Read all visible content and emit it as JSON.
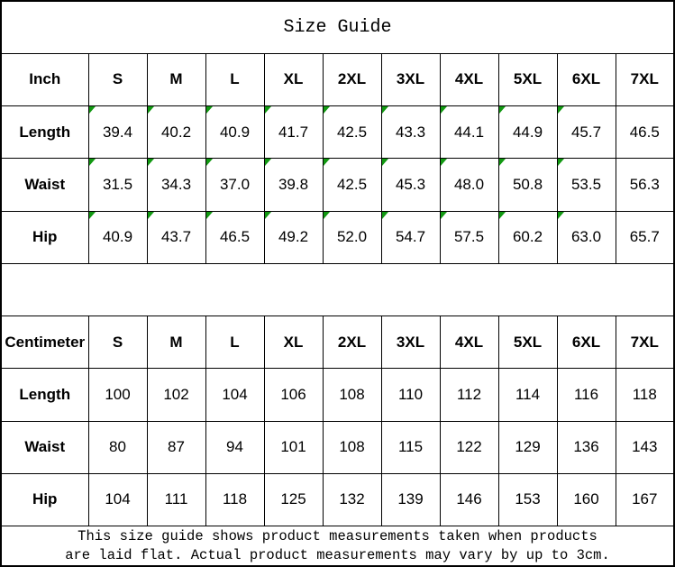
{
  "title": "Size Guide",
  "colors": {
    "border": "#000000",
    "background": "#ffffff",
    "text": "#000000",
    "indicator_green": "#129912"
  },
  "tables": [
    {
      "unit_label": "Inch",
      "size_headers": [
        "S",
        "M",
        "L",
        "XL",
        "2XL",
        "3XL",
        "4XL",
        "5XL",
        "6XL",
        "7XL"
      ],
      "rows": [
        {
          "label": "Length",
          "values": [
            "39.4",
            "40.2",
            "40.9",
            "41.7",
            "42.5",
            "43.3",
            "44.1",
            "44.9",
            "45.7",
            "46.5"
          ],
          "corner_indicator_cells": [
            0,
            1,
            2,
            3,
            4,
            5,
            6,
            7,
            8
          ]
        },
        {
          "label": "Waist",
          "values": [
            "31.5",
            "34.3",
            "37.0",
            "39.8",
            "42.5",
            "45.3",
            "48.0",
            "50.8",
            "53.5",
            "56.3"
          ],
          "corner_indicator_cells": [
            0,
            1,
            2,
            3,
            4,
            5,
            6,
            7,
            8
          ]
        },
        {
          "label": "Hip",
          "values": [
            "40.9",
            "43.7",
            "46.5",
            "49.2",
            "52.0",
            "54.7",
            "57.5",
            "60.2",
            "63.0",
            "65.7"
          ],
          "corner_indicator_cells": [
            0,
            1,
            2,
            3,
            4,
            5,
            6,
            7,
            8
          ]
        }
      ]
    },
    {
      "unit_label": "Centimeter",
      "size_headers": [
        "S",
        "M",
        "L",
        "XL",
        "2XL",
        "3XL",
        "4XL",
        "5XL",
        "6XL",
        "7XL"
      ],
      "rows": [
        {
          "label": "Length",
          "values": [
            "100",
            "102",
            "104",
            "106",
            "108",
            "110",
            "112",
            "114",
            "116",
            "118"
          ],
          "corner_indicator_cells": []
        },
        {
          "label": "Waist",
          "values": [
            "80",
            "87",
            "94",
            "101",
            "108",
            "115",
            "122",
            "129",
            "136",
            "143"
          ],
          "corner_indicator_cells": []
        },
        {
          "label": "Hip",
          "values": [
            "104",
            "111",
            "118",
            "125",
            "132",
            "139",
            "146",
            "153",
            "160",
            "167"
          ],
          "corner_indicator_cells": []
        }
      ]
    }
  ],
  "footer_note_lines": [
    "This size guide shows product measurements taken when products",
    "are laid flat. Actual product measurements may vary by up to 3cm."
  ],
  "chart_data": [
    {
      "type": "table",
      "title": "Size Guide",
      "unit": "Inch",
      "columns": [
        "Inch",
        "S",
        "M",
        "L",
        "XL",
        "2XL",
        "3XL",
        "4XL",
        "5XL",
        "6XL",
        "7XL"
      ],
      "rows": [
        [
          "Length",
          39.4,
          40.2,
          40.9,
          41.7,
          42.5,
          43.3,
          44.1,
          44.9,
          45.7,
          46.5
        ],
        [
          "Waist",
          31.5,
          34.3,
          37.0,
          39.8,
          42.5,
          45.3,
          48.0,
          50.8,
          53.5,
          56.3
        ],
        [
          "Hip",
          40.9,
          43.7,
          46.5,
          49.2,
          52.0,
          54.7,
          57.5,
          60.2,
          63.0,
          65.7
        ]
      ]
    },
    {
      "type": "table",
      "title": "Size Guide",
      "unit": "Centimeter",
      "columns": [
        "Centimeter",
        "S",
        "M",
        "L",
        "XL",
        "2XL",
        "3XL",
        "4XL",
        "5XL",
        "6XL",
        "7XL"
      ],
      "rows": [
        [
          "Length",
          100,
          102,
          104,
          106,
          108,
          110,
          112,
          114,
          116,
          118
        ],
        [
          "Waist",
          80,
          87,
          94,
          101,
          108,
          115,
          122,
          129,
          136,
          143
        ],
        [
          "Hip",
          104,
          111,
          118,
          125,
          132,
          139,
          146,
          153,
          160,
          167
        ]
      ],
      "note": "This size guide shows product measurements taken when products are laid flat. Actual product measurements may vary by up to 3cm."
    }
  ]
}
